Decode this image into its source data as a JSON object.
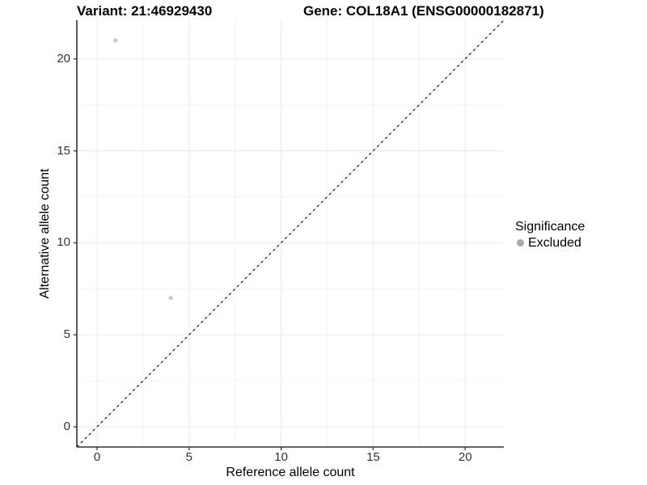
{
  "header": {
    "variant_title": "Variant: 21:46929430",
    "gene_title": "Gene: COL18A1 (ENSG00000182871)"
  },
  "chart_data": {
    "type": "scatter",
    "xlabel": "Reference allele count",
    "ylabel": "Alternative allele count",
    "xlim": [
      -1.1,
      22.1
    ],
    "ylim": [
      -1.1,
      22.1
    ],
    "x_ticks": [
      0,
      5,
      10,
      15,
      20
    ],
    "y_ticks": [
      0,
      5,
      10,
      15,
      20
    ],
    "x_minor_ticks": [
      2.5,
      7.5,
      12.5,
      17.5
    ],
    "y_minor_ticks": [
      2.5,
      7.5,
      12.5,
      17.5
    ],
    "grid": true,
    "legend_position": "right",
    "points": [
      {
        "x": 1,
        "y": 21,
        "series": "Excluded"
      },
      {
        "x": 4,
        "y": 7,
        "series": "Excluded"
      }
    ],
    "identity_line": {
      "style": "dashed",
      "from": [
        -1.1,
        -1.1
      ],
      "to": [
        22.1,
        22.1
      ]
    },
    "colors": {
      "point": "#c9c9c9",
      "legend_dot": "#aaaaaa",
      "major_grid": "#eaeaea",
      "minor_grid": "#f4f4f4",
      "axis": "#333333",
      "identity_line": "#1a1a1a"
    }
  },
  "legend": {
    "title": "Significance",
    "items": [
      {
        "label": "Excluded",
        "color": "#aaaaaa"
      }
    ]
  }
}
